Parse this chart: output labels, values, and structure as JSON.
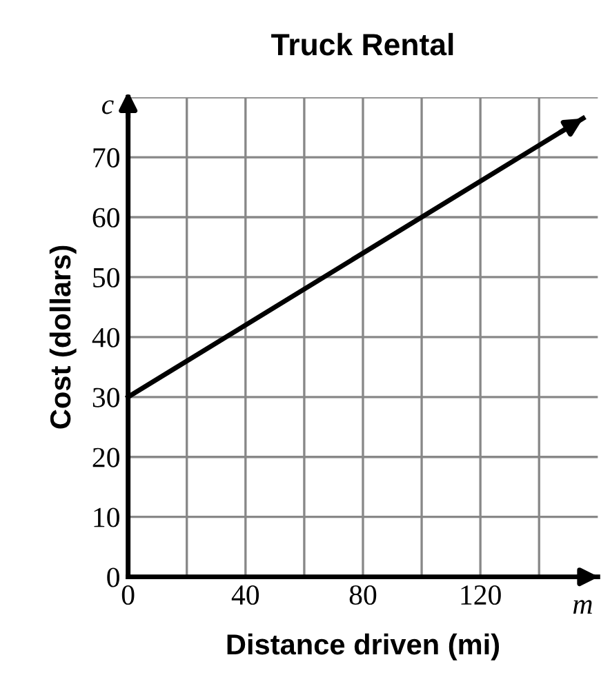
{
  "chart_data": {
    "type": "line",
    "title": "Truck Rental",
    "xlabel": "Distance driven (mi)",
    "ylabel": "Cost (dollars)",
    "annotations": [
      "c",
      "m"
    ],
    "x": [
      0,
      155
    ],
    "series": [
      {
        "color": "#000000",
        "values": [
          30,
          76.5
        ]
      }
    ],
    "xlim": [
      0,
      160
    ],
    "ylim": [
      0,
      80
    ],
    "xticks": [
      0,
      {
        "value": 20,
        "label": null
      },
      40,
      {
        "value": 60,
        "label": null
      },
      80,
      {
        "value": 100,
        "label": null
      },
      120,
      {
        "value": 140,
        "label": null
      }
    ],
    "yticks": [
      0,
      10,
      20,
      30,
      40,
      50,
      60,
      70,
      {
        "value": 80,
        "label": null
      }
    ],
    "grid": true,
    "legend": false,
    "marker": "none",
    "line_style": "solid"
  }
}
